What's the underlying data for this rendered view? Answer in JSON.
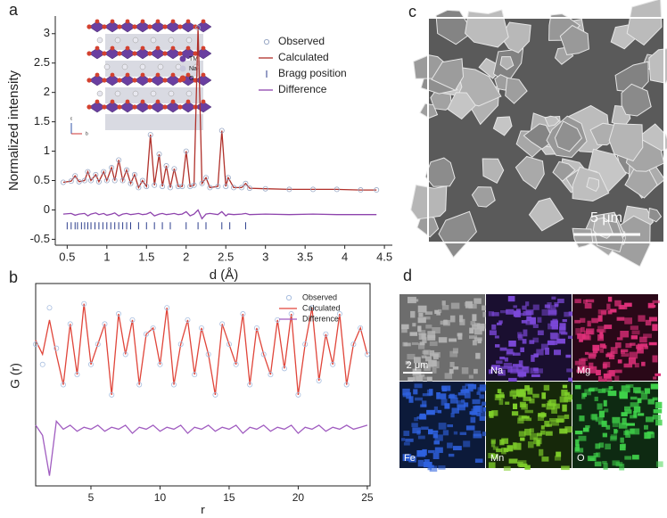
{
  "panels": [
    "a",
    "b",
    "c",
    "d"
  ],
  "inset_legend": [
    "TM",
    "Na",
    "O"
  ],
  "inset_axes": [
    "c",
    "b"
  ],
  "chart_data": [
    {
      "type": "line",
      "xlabel": "d (Å)",
      "ylabel": "Normalized intensity",
      "xlim": [
        0.35,
        4.6
      ],
      "xticks": [
        0.5,
        1.0,
        1.5,
        2.0,
        2.5,
        3.0,
        3.5,
        4.0,
        4.5
      ],
      "ylim": [
        -0.6,
        3.3
      ],
      "yticks": [
        -0.5,
        0.0,
        0.5,
        1.0,
        1.5,
        2.0,
        2.5,
        3.0
      ],
      "x": [
        0.45,
        0.55,
        0.6,
        0.65,
        0.72,
        0.76,
        0.8,
        0.86,
        0.9,
        0.96,
        1.0,
        1.06,
        1.1,
        1.15,
        1.2,
        1.25,
        1.3,
        1.35,
        1.4,
        1.45,
        1.5,
        1.55,
        1.6,
        1.66,
        1.7,
        1.75,
        1.8,
        1.85,
        1.9,
        1.95,
        2.0,
        2.05,
        2.1,
        2.15,
        2.2,
        2.25,
        2.3,
        2.4,
        2.45,
        2.5,
        2.53,
        2.6,
        2.7,
        2.75,
        2.8,
        3.0,
        3.3,
        3.6,
        3.9,
        4.2,
        4.4
      ],
      "series": [
        {
          "name": "Observed",
          "color": "#9aa9c6",
          "style": "markers",
          "values": [
            0.47,
            0.49,
            0.58,
            0.48,
            0.5,
            0.65,
            0.5,
            0.6,
            0.48,
            0.65,
            0.5,
            0.72,
            0.5,
            0.85,
            0.5,
            0.68,
            0.45,
            0.6,
            0.38,
            0.5,
            0.4,
            1.28,
            0.42,
            0.95,
            0.4,
            0.75,
            0.38,
            0.7,
            0.4,
            0.4,
            1.0,
            0.4,
            0.42,
            3.1,
            0.45,
            0.55,
            0.38,
            0.4,
            1.35,
            0.4,
            0.55,
            0.38,
            0.38,
            0.45,
            0.37,
            0.36,
            0.35,
            0.35,
            0.35,
            0.34,
            0.34
          ]
        },
        {
          "name": "Calculated",
          "color": "#b0302a",
          "style": "line",
          "values": [
            0.47,
            0.49,
            0.58,
            0.48,
            0.5,
            0.65,
            0.5,
            0.6,
            0.48,
            0.65,
            0.5,
            0.72,
            0.5,
            0.85,
            0.5,
            0.68,
            0.45,
            0.6,
            0.38,
            0.5,
            0.4,
            1.28,
            0.42,
            0.95,
            0.4,
            0.75,
            0.38,
            0.7,
            0.4,
            0.4,
            1.0,
            0.4,
            0.42,
            3.1,
            0.45,
            0.55,
            0.38,
            0.4,
            1.35,
            0.4,
            0.55,
            0.38,
            0.38,
            0.45,
            0.37,
            0.36,
            0.35,
            0.35,
            0.35,
            0.34,
            0.34
          ]
        },
        {
          "name": "Bragg position",
          "color": "#2c3e8c",
          "style": "ticks",
          "y": -0.27,
          "x": [
            0.5,
            0.55,
            0.6,
            0.63,
            0.68,
            0.72,
            0.76,
            0.8,
            0.85,
            0.9,
            0.95,
            1.0,
            1.05,
            1.1,
            1.15,
            1.2,
            1.25,
            1.3,
            1.4,
            1.5,
            1.6,
            1.7,
            1.8,
            2.0,
            2.15,
            2.25,
            2.45,
            2.55,
            2.75
          ]
        },
        {
          "name": "Difference",
          "color": "#8e44ad",
          "style": "line",
          "values": [
            -0.07,
            -0.06,
            -0.09,
            -0.07,
            -0.06,
            -0.1,
            -0.07,
            -0.05,
            -0.08,
            -0.06,
            -0.09,
            -0.07,
            -0.05,
            -0.1,
            -0.07,
            -0.06,
            -0.08,
            -0.07,
            -0.06,
            -0.08,
            -0.07,
            -0.04,
            -0.1,
            -0.07,
            -0.06,
            -0.08,
            -0.07,
            -0.06,
            -0.08,
            -0.07,
            -0.03,
            -0.1,
            -0.07,
            0.0,
            -0.15,
            -0.07,
            -0.06,
            -0.08,
            -0.03,
            -0.1,
            -0.07,
            -0.08,
            -0.07,
            -0.06,
            -0.08,
            -0.07,
            -0.08,
            -0.07,
            -0.08,
            -0.08,
            -0.08
          ]
        }
      ]
    },
    {
      "type": "line",
      "xlabel": "r",
      "ylabel": "G (r)",
      "xlim": [
        1,
        25.2
      ],
      "xticks": [
        5,
        10,
        15,
        20,
        25
      ],
      "ylim": [
        -10,
        90
      ],
      "x": [
        1,
        1.5,
        2,
        2.5,
        3,
        3.5,
        4,
        4.5,
        5,
        5.5,
        6,
        6.5,
        7,
        7.5,
        8,
        8.5,
        9,
        9.5,
        10,
        10.5,
        11,
        11.5,
        12,
        12.5,
        13,
        13.5,
        14,
        14.5,
        15,
        15.5,
        16,
        16.5,
        17,
        17.5,
        18,
        18.5,
        19,
        19.5,
        20,
        20.5,
        21,
        21.5,
        22,
        22.5,
        23,
        23.5,
        24,
        24.5,
        25
      ],
      "series": [
        {
          "name": "Observed",
          "color": "#a9bfe0",
          "style": "markers",
          "values": [
            60,
            50,
            78,
            58,
            40,
            70,
            45,
            80,
            50,
            60,
            70,
            35,
            75,
            55,
            72,
            40,
            65,
            68,
            50,
            78,
            40,
            60,
            72,
            45,
            68,
            55,
            35,
            70,
            60,
            50,
            75,
            40,
            68,
            55,
            45,
            72,
            48,
            75,
            35,
            60,
            78,
            42,
            65,
            50,
            75,
            40,
            60,
            68,
            55
          ]
        },
        {
          "name": "Calculated",
          "color": "#e0453a",
          "style": "line",
          "values": [
            62,
            55,
            72,
            55,
            40,
            70,
            45,
            80,
            50,
            60,
            70,
            35,
            75,
            55,
            72,
            40,
            65,
            68,
            50,
            78,
            40,
            60,
            72,
            45,
            68,
            55,
            35,
            70,
            60,
            50,
            75,
            40,
            68,
            55,
            45,
            72,
            48,
            75,
            35,
            60,
            78,
            42,
            65,
            50,
            75,
            40,
            60,
            68,
            55
          ]
        },
        {
          "name": "Difference",
          "color": "#a05cc0",
          "style": "line",
          "values": [
            20,
            15,
            -5,
            22,
            18,
            20,
            17,
            19,
            18,
            20,
            17,
            19,
            18,
            20,
            16,
            19,
            18,
            20,
            17,
            19,
            18,
            20,
            16,
            19,
            18,
            20,
            17,
            19,
            18,
            20,
            16,
            19,
            18,
            20,
            17,
            19,
            18,
            20,
            16,
            19,
            18,
            20,
            17,
            19,
            18,
            20,
            18,
            19,
            20
          ]
        }
      ]
    }
  ],
  "micrograph_c": {
    "scale_bar": "5 μm"
  },
  "maps": {
    "scale_bar": "2 μm",
    "labels": [
      "Na",
      "Mg",
      "Fe",
      "Mn",
      "O"
    ]
  }
}
